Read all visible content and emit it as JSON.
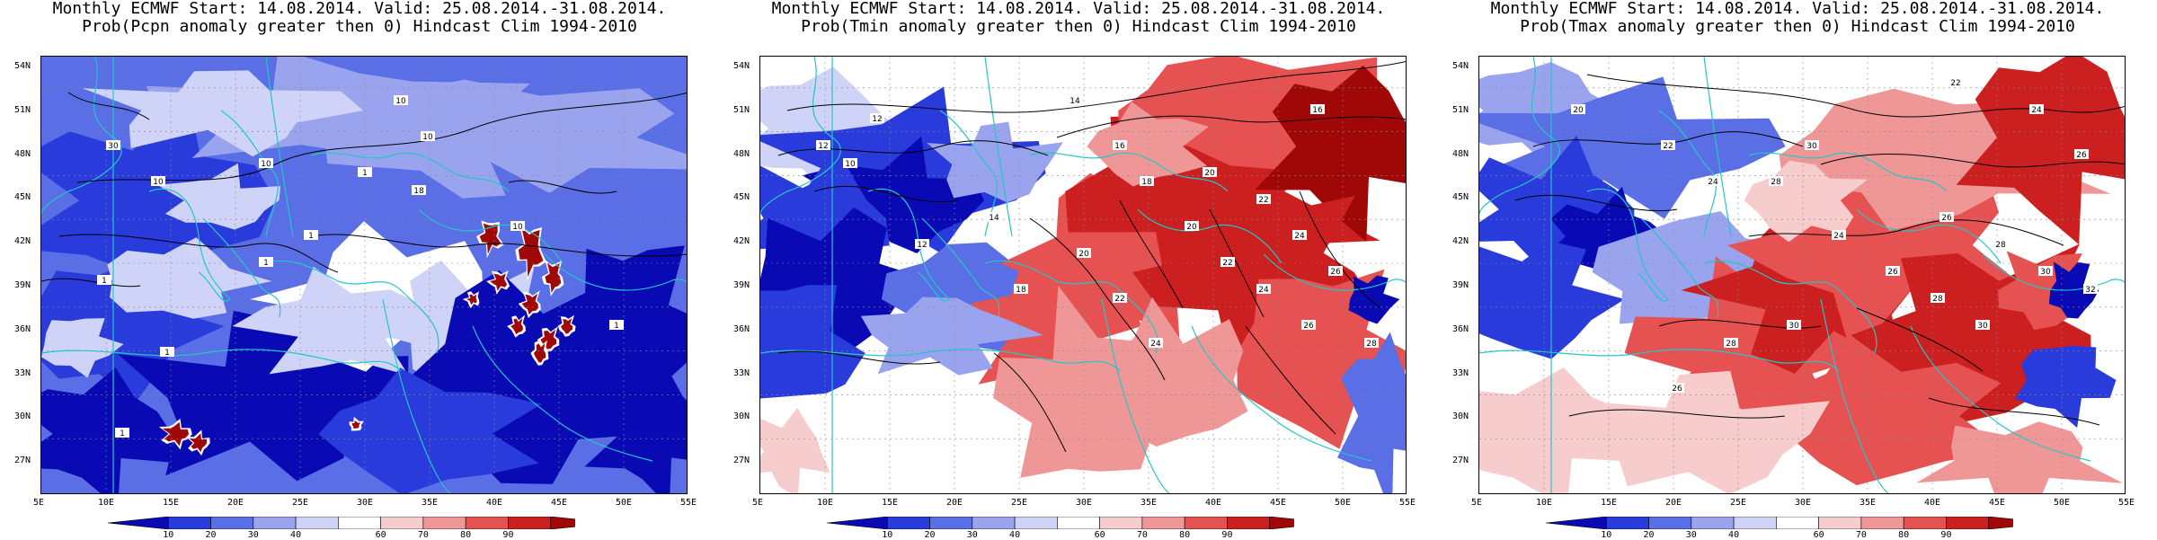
{
  "panels": [
    {
      "title_line1": "Monthly ECMWF Start: 14.08.2014. Valid: 25.08.2014.-31.08.2014.",
      "title_line2": "Prob(Pcpn anomaly greater then 0) Hindcast Clim 1994-2010",
      "variable": "Pcpn",
      "contour_labels": [
        "10",
        "10",
        "10",
        "30",
        "10",
        "18",
        "1",
        "1",
        "1",
        "1",
        "1",
        "1",
        "1",
        "10"
      ]
    },
    {
      "title_line1": "Monthly ECMWF Start: 14.08.2014. Valid: 25.08.2014.-31.08.2014.",
      "title_line2": "Prob(Tmin anomaly greater then 0) Hindcast Clim 1994-2010",
      "variable": "Tmin",
      "contour_labels": [
        "12",
        "12",
        "14",
        "16",
        "10",
        "12",
        "14",
        "18",
        "20",
        "22",
        "24",
        "18",
        "20",
        "22",
        "24",
        "26",
        "20",
        "22",
        "24",
        "26",
        "28",
        "16"
      ]
    },
    {
      "title_line1": "Monthly ECMWF Start: 14.08.2014. Valid: 25.08.2014.-31.08.2014.",
      "title_line2": "Prob(Tmax anomaly greater then 0) Hindcast Clim 1994-2010",
      "variable": "Tmax",
      "contour_labels": [
        "22",
        "24",
        "26",
        "20",
        "22",
        "24",
        "28",
        "30",
        "24",
        "26",
        "28",
        "30",
        "26",
        "28",
        "30",
        "32",
        "30",
        "28",
        "26"
      ]
    }
  ],
  "lat_ticks": [
    "54N",
    "51N",
    "48N",
    "45N",
    "42N",
    "39N",
    "36N",
    "33N",
    "30N",
    "27N"
  ],
  "lon_ticks": [
    "5E",
    "10E",
    "15E",
    "20E",
    "25E",
    "30E",
    "35E",
    "40E",
    "45E",
    "50E",
    "55E"
  ],
  "colorbar": {
    "labels": [
      "10",
      "20",
      "30",
      "40",
      "60",
      "70",
      "80",
      "90"
    ],
    "colors": [
      "#0a0ab4",
      "#2a3bdc",
      "#5a6ee6",
      "#9aa4ee",
      "#cfd3f7",
      "#ffffff",
      "#f7cccc",
      "#ef9797",
      "#e65252",
      "#cc1f1f",
      "#a00808"
    ]
  },
  "colors": {
    "coastline": "#22c7c7",
    "contour": "#000000",
    "grid": "#888888"
  }
}
